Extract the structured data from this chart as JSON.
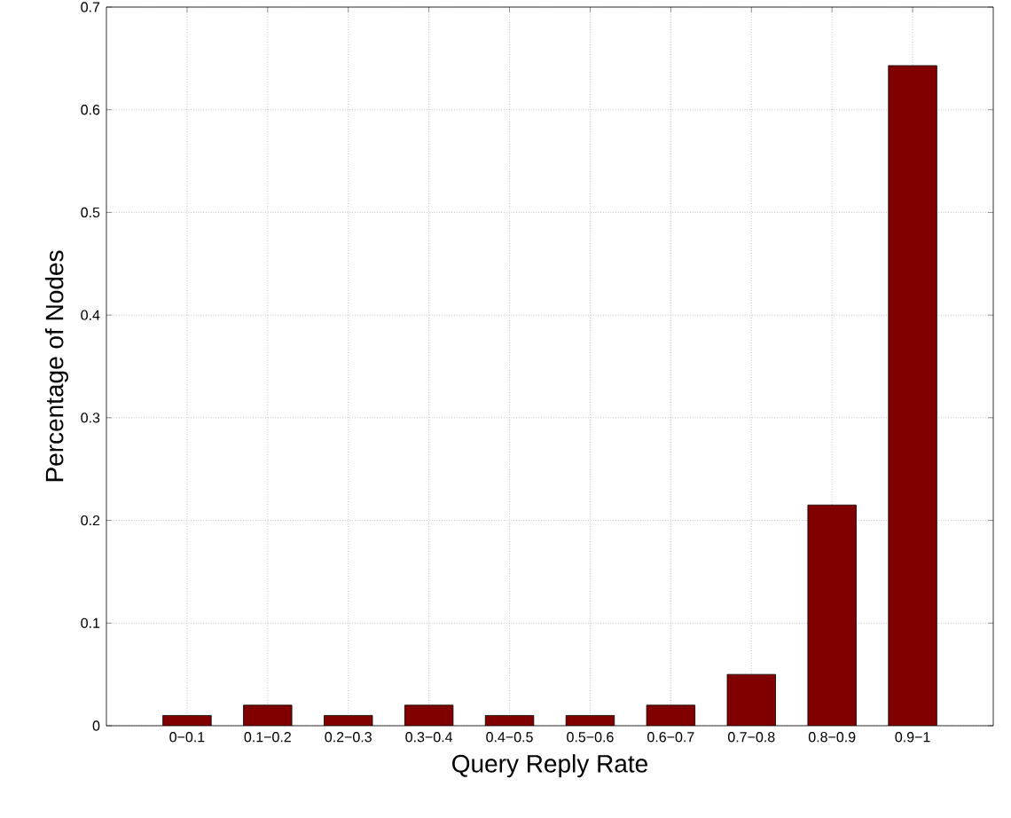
{
  "chart_data": {
    "type": "bar",
    "xlabel": "Query Reply Rate",
    "ylabel": "Percentage of Nodes",
    "categories": [
      "0−0.1",
      "0.1−0.2",
      "0.2−0.3",
      "0.3−0.4",
      "0.4−0.5",
      "0.5−0.6",
      "0.6−0.7",
      "0.7−0.8",
      "0.8−0.9",
      "0.9−1"
    ],
    "values": [
      0.01,
      0.02,
      0.01,
      0.02,
      0.01,
      0.01,
      0.02,
      0.05,
      0.215,
      0.643
    ],
    "color": "#800000",
    "ylim": [
      0,
      0.7
    ],
    "yticks": [
      0,
      0.1,
      0.2,
      0.3,
      0.4,
      0.5,
      0.6,
      0.7
    ],
    "grid": true
  }
}
